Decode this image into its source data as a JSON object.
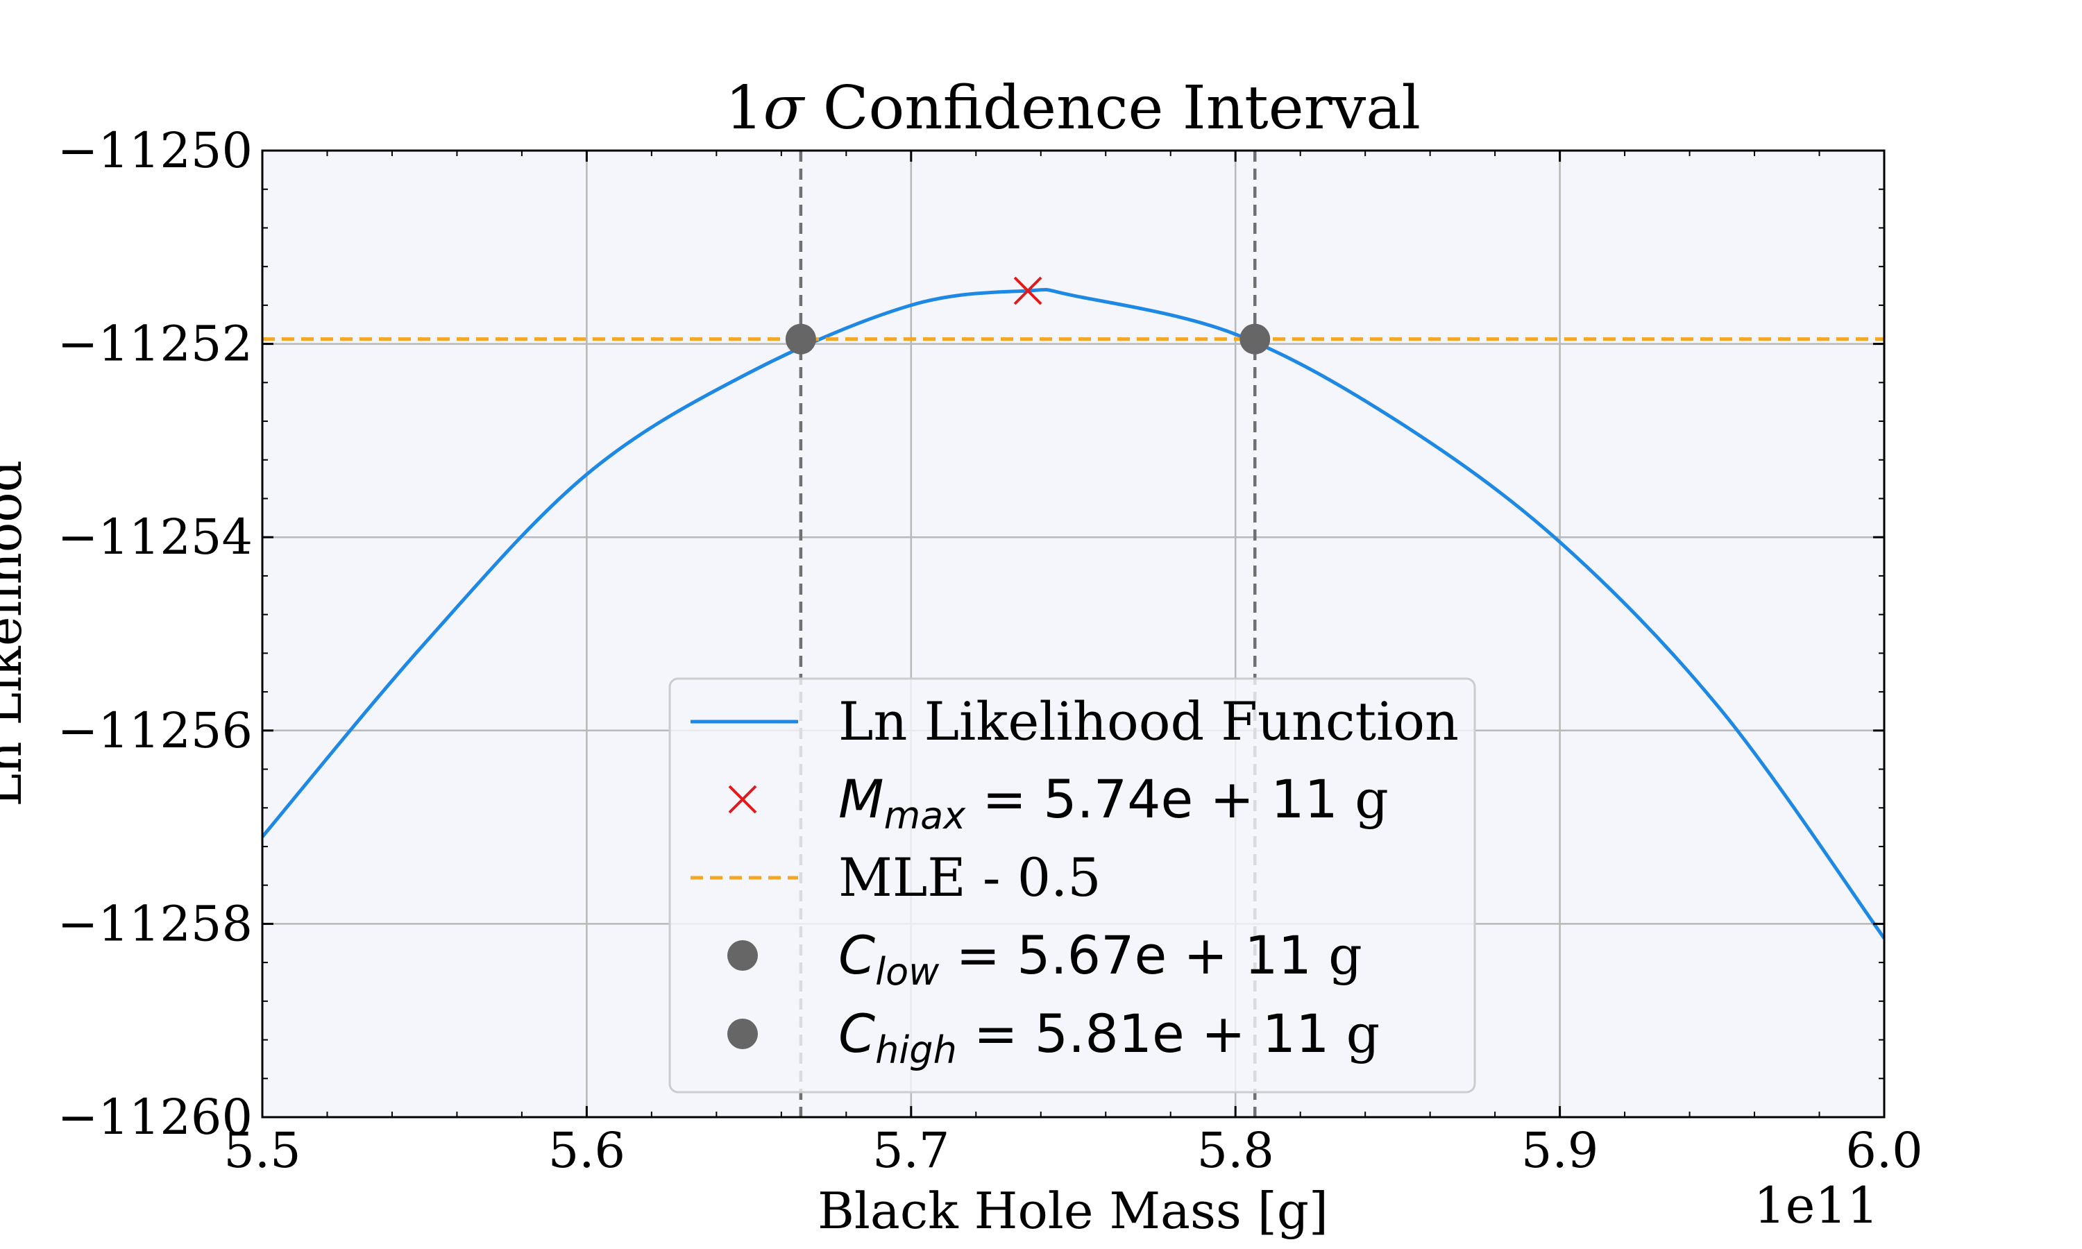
{
  "chart_data": {
    "type": "line",
    "title": "1σ Confidence Interval",
    "title_prefix": "1",
    "title_symbol": "σ",
    "title_suffix": " Confidence Interval",
    "xlabel": "Black Hole Mass [g]",
    "ylabel": "Ln Likelihood",
    "x_offset_label": "1e11",
    "xlim": [
      5.5,
      6.0
    ],
    "ylim": [
      -11260,
      -11250
    ],
    "x_ticks": [
      5.5,
      5.6,
      5.7,
      5.8,
      5.9,
      6.0
    ],
    "x_tick_labels": [
      "5.5",
      "5.6",
      "5.7",
      "5.8",
      "5.9",
      "6.0"
    ],
    "y_ticks": [
      -11260,
      -11258,
      -11256,
      -11254,
      -11252,
      -11250
    ],
    "y_tick_labels": [
      "−11260",
      "−11258",
      "−11256",
      "−11254",
      "−11252",
      "−11250"
    ],
    "grid": true,
    "plot_background": "#f4f6fb",
    "legend_placement": "lower center",
    "series": [
      {
        "name": "Ln Likelihood Function",
        "kind": "line",
        "color": "#1e88e5",
        "x": [
          5.5,
          5.55,
          5.6,
          5.65,
          5.7,
          5.736,
          5.75,
          5.8,
          5.85,
          5.9,
          5.95,
          6.0
        ],
        "y": [
          -11257.1,
          -11255.1,
          -11253.35,
          -11252.3,
          -11251.6,
          -11251.45,
          -11251.5,
          -11251.9,
          -11252.8,
          -11254.05,
          -11255.8,
          -11258.15
        ]
      },
      {
        "name": "M_max = 5.74e + 11 g",
        "kind": "marker-x",
        "color": "#e31a1c",
        "x": [
          5.736
        ],
        "y": [
          -11251.45
        ]
      },
      {
        "name": "MLE - 0.5",
        "kind": "hline-dashed",
        "color": "#f5a623",
        "y": -11251.95
      },
      {
        "name": "C_low = 5.67e + 11 g",
        "kind": "point",
        "color": "#666666",
        "x": [
          5.666
        ],
        "y": [
          -11251.95
        ]
      },
      {
        "name": "C_high = 5.81e + 11 g",
        "kind": "point",
        "color": "#666666",
        "x": [
          5.806
        ],
        "y": [
          -11251.95
        ]
      }
    ],
    "vlines": [
      {
        "x": 5.666,
        "color": "#707070",
        "style": "dashed"
      },
      {
        "x": 5.806,
        "color": "#707070",
        "style": "dashed"
      }
    ],
    "legend": [
      {
        "symbol": "line",
        "color": "#1e88e5",
        "text": "Ln Likelihood Function"
      },
      {
        "symbol": "x",
        "color": "#e31a1c",
        "math_var": "M",
        "math_sub": "max",
        "math_rhs": " = 5.74e + 11",
        "unit": " g"
      },
      {
        "symbol": "dashed",
        "color": "#f5a623",
        "text": "MLE - 0.5"
      },
      {
        "symbol": "dot",
        "color": "#666666",
        "math_var": "C",
        "math_sub": "low",
        "math_rhs": " = 5.67e + 11",
        "unit": " g"
      },
      {
        "symbol": "dot",
        "color": "#666666",
        "math_var": "C",
        "math_sub": "high",
        "math_rhs": " = 5.81e + 11",
        "unit": " g"
      }
    ]
  }
}
